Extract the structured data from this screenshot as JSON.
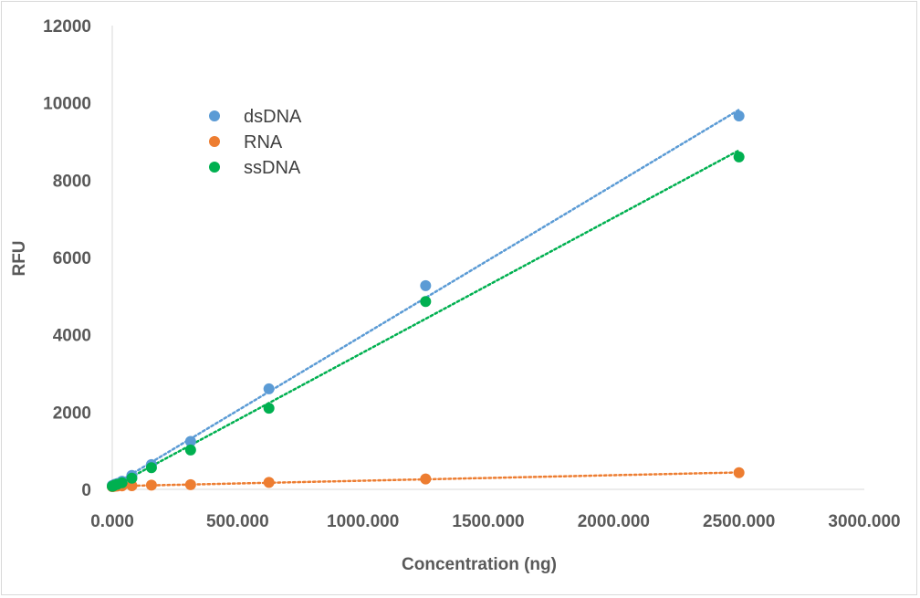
{
  "chart_data": {
    "type": "scatter",
    "title": "",
    "xlabel": "Concentration (ng)",
    "ylabel": "RFU",
    "xlim": [
      0,
      3000
    ],
    "ylim": [
      0,
      12000
    ],
    "x_ticks": [
      0,
      500,
      1000,
      1500,
      2000,
      2500,
      3000
    ],
    "x_tick_labels": [
      "0.000",
      "500.000",
      "1000.000",
      "1500.000",
      "2000.000",
      "2500.000",
      "3000.000"
    ],
    "y_ticks": [
      0,
      2000,
      4000,
      6000,
      8000,
      10000,
      12000
    ],
    "y_tick_labels": [
      "0",
      "2000",
      "4000",
      "6000",
      "8000",
      "10000",
      "12000"
    ],
    "grid": false,
    "legend_position": "top-left-inside",
    "trendlines": "linear-dotted",
    "series": [
      {
        "name": "dsDNA",
        "color": "#5b9bd5",
        "x": [
          0,
          4.883,
          9.766,
          19.531,
          39.063,
          78.125,
          156.25,
          312.5,
          625,
          1250,
          2500
        ],
        "y": [
          100,
          110,
          130,
          150,
          210,
          360,
          640,
          1240,
          2600,
          5270,
          9660
        ]
      },
      {
        "name": "RNA",
        "color": "#ed7d31",
        "x": [
          0,
          4.883,
          9.766,
          19.531,
          39.063,
          78.125,
          156.25,
          312.5,
          625,
          1250,
          2500
        ],
        "y": [
          70,
          75,
          80,
          85,
          90,
          95,
          110,
          120,
          180,
          270,
          430
        ]
      },
      {
        "name": "ssDNA",
        "color": "#00b050",
        "x": [
          0,
          4.883,
          9.766,
          19.531,
          39.063,
          78.125,
          156.25,
          312.5,
          625,
          1250,
          2500
        ],
        "y": [
          80,
          90,
          110,
          130,
          170,
          290,
          560,
          1020,
          2100,
          4860,
          8600
        ]
      }
    ]
  }
}
